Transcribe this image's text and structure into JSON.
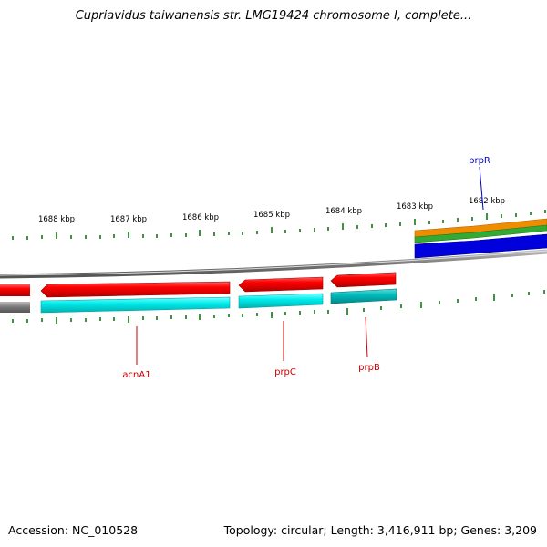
{
  "title": "Cupriavidus taiwanensis str. LMG19424 chromosome I, complete...",
  "accession": "Accession: NC_010528",
  "summary": "Topology: circular; Length: 3,416,911 bp; Genes: 3,209",
  "kbp_labels": [
    "1688 kbp",
    "1687 kbp",
    "1686 kbp",
    "1685 kbp",
    "1684 kbp",
    "1683 kbp",
    "1682 kbp"
  ],
  "genes": [
    {
      "name": "acnA1",
      "color": "#cc0000"
    },
    {
      "name": "prpC",
      "color": "#cc0000"
    },
    {
      "name": "prpB",
      "color": "#cc0000"
    },
    {
      "name": "prpR",
      "color": "#0000cc"
    }
  ],
  "colors": {
    "gene_red": "#ee0000",
    "cds_cyan": "#00e0e0",
    "cds_teal": "#00b8b8",
    "backbone_gray": "#888888",
    "tick_green": "#117711",
    "track_orange": "#f08c00",
    "track_green": "#33aa33",
    "track_blue": "#0000dd"
  }
}
